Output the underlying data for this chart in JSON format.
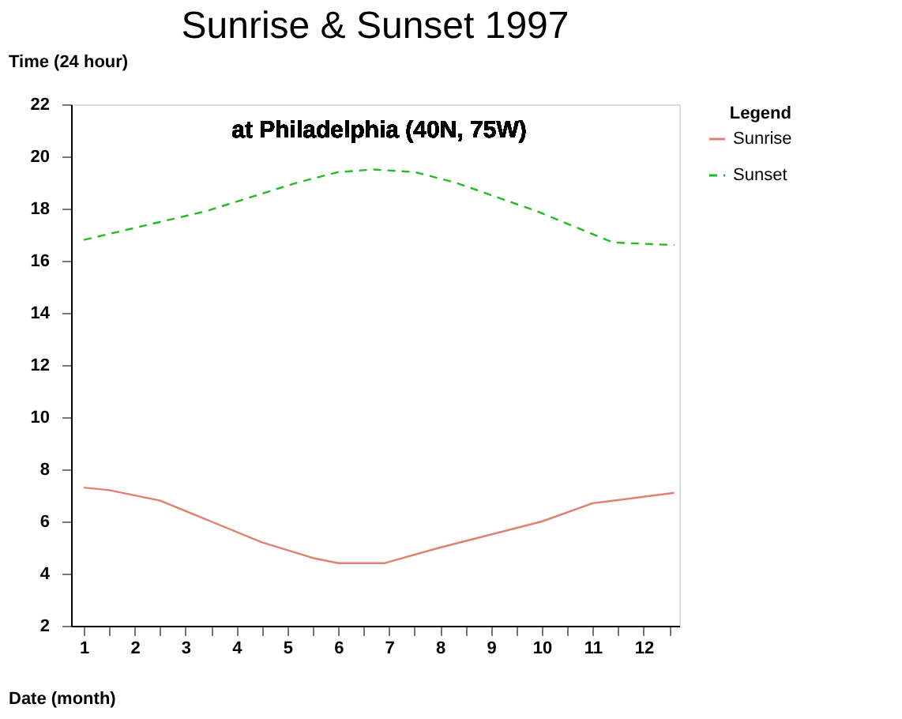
{
  "chart_data": {
    "type": "line",
    "title": "Sunrise & Sunset 1997",
    "subtitle": "at Philadelphia (40N, 75W)",
    "xlabel": "Date (month)",
    "ylabel": "Time (24 hour)",
    "legend_title": "Legend",
    "legend": "right",
    "grid": false,
    "xlim": [
      0.75,
      12.7
    ],
    "xticks": [
      1,
      {
        "value": 1.5,
        "label": null
      },
      2,
      {
        "value": 2.5,
        "label": null
      },
      3,
      {
        "value": 3.5,
        "label": null
      },
      4,
      {
        "value": 4.5,
        "label": null
      },
      5,
      {
        "value": 5.5,
        "label": null
      },
      6,
      {
        "value": 6.5,
        "label": null
      },
      7,
      {
        "value": 7.5,
        "label": null
      },
      8,
      {
        "value": 8.5,
        "label": null
      },
      9,
      {
        "value": 9.5,
        "label": null
      },
      10,
      {
        "value": 10.5,
        "label": null
      },
      11,
      {
        "value": 11.5,
        "label": null
      },
      12,
      {
        "value": 12.5,
        "label": null
      }
    ],
    "ylim": [
      2,
      22
    ],
    "yticks": [
      2,
      4,
      6,
      8,
      10,
      12,
      14,
      16,
      18,
      20,
      22
    ],
    "series": [
      {
        "name": "Sunrise",
        "color": "#e08070",
        "line_style": "solid",
        "x": [
          1,
          1.5,
          2.5,
          3.5,
          4.5,
          5.5,
          6,
          6.9,
          8,
          9,
          10,
          11,
          12.6
        ],
        "values": [
          7.3,
          7.2,
          6.8,
          6.0,
          5.2,
          4.6,
          4.4,
          4.4,
          5.0,
          5.5,
          6.0,
          6.7,
          7.1
        ]
      },
      {
        "name": "Sunset",
        "color": "#22bb22",
        "line_style": "dashed",
        "x": [
          1,
          3.4,
          5.2,
          6,
          6.7,
          7.5,
          8.3,
          9.9,
          11.4,
          12.6
        ],
        "values": [
          16.8,
          17.9,
          19.0,
          19.4,
          19.5,
          19.4,
          19.0,
          17.9,
          16.7,
          16.6
        ]
      }
    ]
  }
}
